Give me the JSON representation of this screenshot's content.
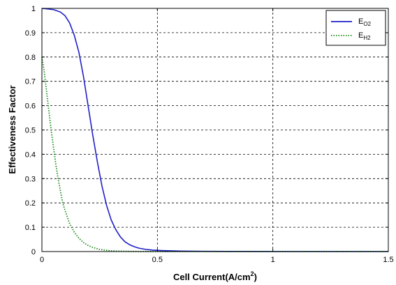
{
  "chart_data": {
    "type": "line",
    "title": "",
    "xlabel": "Cell Current(A/cm",
    "xlabel_sup": "2",
    "xlabel_tail": ")",
    "ylabel": "Effectiveness Factor",
    "xlim": [
      0,
      1.5
    ],
    "ylim": [
      0,
      1
    ],
    "xticks": [
      "0",
      "0.5",
      "1",
      "1.5"
    ],
    "yticks": [
      "0",
      "0.1",
      "0.2",
      "0.3",
      "0.4",
      "0.5",
      "0.6",
      "0.7",
      "0.8",
      "0.9",
      "1"
    ],
    "grid": true,
    "legend_position": "top-right",
    "series": [
      {
        "name": "E",
        "name_sub": "O2",
        "color": "#1f1fc8",
        "style": "solid",
        "x": [
          0,
          0.05,
          0.08,
          0.1,
          0.12,
          0.14,
          0.16,
          0.18,
          0.2,
          0.22,
          0.24,
          0.26,
          0.28,
          0.3,
          0.32,
          0.34,
          0.36,
          0.38,
          0.4,
          0.42,
          0.45,
          0.48,
          0.52,
          0.56,
          0.6,
          0.7,
          0.8,
          1.0,
          1.2,
          1.5
        ],
        "y": [
          1.0,
          0.995,
          0.985,
          0.97,
          0.94,
          0.89,
          0.82,
          0.72,
          0.6,
          0.48,
          0.37,
          0.27,
          0.19,
          0.13,
          0.09,
          0.06,
          0.04,
          0.028,
          0.02,
          0.014,
          0.009,
          0.006,
          0.004,
          0.003,
          0.002,
          0.001,
          0.0005,
          0.0,
          0.0,
          0.0
        ]
      },
      {
        "name": "E",
        "name_sub": "H2",
        "color": "#1a8a1a",
        "style": "dotted",
        "x": [
          0,
          0.01,
          0.02,
          0.03,
          0.04,
          0.05,
          0.06,
          0.07,
          0.08,
          0.09,
          0.1,
          0.12,
          0.14,
          0.16,
          0.18,
          0.2,
          0.22,
          0.25,
          0.28,
          0.32,
          0.36,
          0.4,
          0.5,
          0.6,
          0.8,
          1.0,
          1.5
        ],
        "y": [
          0.8,
          0.74,
          0.66,
          0.58,
          0.5,
          0.43,
          0.36,
          0.3,
          0.25,
          0.2,
          0.17,
          0.115,
          0.08,
          0.055,
          0.037,
          0.025,
          0.017,
          0.009,
          0.005,
          0.002,
          0.001,
          0.0005,
          0.0,
          0.0,
          0.0,
          0.0,
          0.0
        ]
      }
    ]
  }
}
